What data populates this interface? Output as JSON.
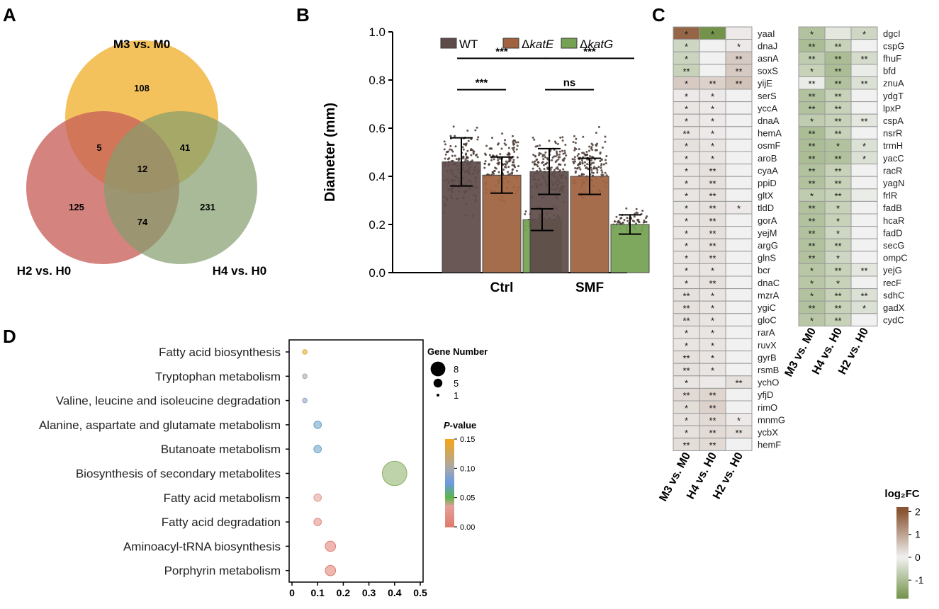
{
  "panels": {
    "A": "A",
    "B": "B",
    "C": "C",
    "D": "D"
  },
  "chart_data": [
    {
      "type": "venn",
      "sets": [
        {
          "name": "M3 vs. M0",
          "color": "#f3bb4b"
        },
        {
          "name": "H2 vs. H0",
          "color": "#c8605a"
        },
        {
          "name": "H4 vs. H0",
          "color": "#849c6c"
        }
      ],
      "regions": [
        {
          "sets": [
            "M3 vs. M0"
          ],
          "value": 108
        },
        {
          "sets": [
            "H2 vs. H0"
          ],
          "value": 125
        },
        {
          "sets": [
            "H4 vs. H0"
          ],
          "value": 231
        },
        {
          "sets": [
            "M3 vs. M0",
            "H2 vs. H0"
          ],
          "value": 5
        },
        {
          "sets": [
            "M3 vs. M0",
            "H4 vs. H0"
          ],
          "value": 41
        },
        {
          "sets": [
            "H2 vs. H0",
            "H4 vs. H0"
          ],
          "value": 74
        },
        {
          "sets": [
            "M3 vs. M0",
            "H2 vs. H0",
            "H4 vs. H0"
          ],
          "value": 12
        }
      ]
    },
    {
      "type": "bar",
      "ylabel": "Diameter (mm)",
      "ylim": [
        0,
        1.0
      ],
      "yticks": [
        "0.0",
        "0.2",
        "0.4",
        "0.6",
        "0.8",
        "1.0"
      ],
      "categories": [
        "Ctrl",
        "SMF"
      ],
      "series": [
        {
          "name": "WT",
          "italic": "",
          "color": "#5e4c4a",
          "values": [
            0.46,
            0.42
          ],
          "sd": [
            0.1,
            0.095
          ],
          "spread": [
            0.21,
            0.64
          ]
        },
        {
          "name": "Δ",
          "italic": "katE",
          "color": "#a0623f",
          "values": [
            0.405,
            0.4
          ],
          "sd": [
            0.075,
            0.075
          ],
          "spread": [
            0.27,
            0.62
          ]
        },
        {
          "name": "Δ",
          "italic": "katG",
          "color": "#76a253",
          "values": [
            0.22,
            0.2
          ],
          "sd": [
            0.045,
            0.04
          ],
          "spread": [
            0.15,
            0.28
          ]
        }
      ],
      "significance": [
        {
          "label": "***",
          "group": "Ctrl",
          "from": 0,
          "to": 2,
          "y": 0.89
        },
        {
          "label": "***",
          "group": "Ctrl",
          "from": 0,
          "to": 1,
          "y": 0.76
        },
        {
          "label": "***",
          "group": "SMF",
          "from": 0,
          "to": 2,
          "y": 0.89
        },
        {
          "label": "ns",
          "group": "SMF",
          "from": 0,
          "to": 1,
          "y": 0.76
        }
      ]
    },
    {
      "type": "heatmap",
      "columns": [
        "M3 vs. M0",
        "H4 vs. H0",
        "H2 vs. H0"
      ],
      "left": {
        "genes": [
          "yaaI",
          "dnaJ",
          "asnA",
          "soxS",
          "yijE",
          "serS",
          "yccA",
          "dnaA",
          "hemA",
          "osmF",
          "aroB",
          "cyaA",
          "ppiD",
          "gltX",
          "tldD",
          "gorA",
          "yejM",
          "argG",
          "glnS",
          "bcr",
          "dnaC",
          "mzrA",
          "ygiC",
          "gloC",
          "rarA",
          "ruvX",
          "gyrB",
          "rsmB",
          "ychO",
          "yfjD",
          "rimO",
          "mnmG",
          "ycbX",
          "hemF"
        ],
        "values": [
          [
            1.8,
            -1.8,
            0.1
          ],
          [
            -0.5,
            0,
            0.1
          ],
          [
            -0.55,
            0,
            0.5
          ],
          [
            -0.6,
            0,
            0.5
          ],
          [
            0.5,
            0.4,
            0.6
          ],
          [
            0.1,
            0.1,
            0
          ],
          [
            0.15,
            0.1,
            0
          ],
          [
            0.15,
            0.1,
            0
          ],
          [
            0.15,
            0.1,
            0
          ],
          [
            0.2,
            0.15,
            0
          ],
          [
            0.15,
            0.15,
            0
          ],
          [
            0.15,
            0.2,
            0
          ],
          [
            0.15,
            0.2,
            0
          ],
          [
            0.15,
            0.2,
            0
          ],
          [
            0.15,
            0.2,
            0.1
          ],
          [
            0.15,
            0.2,
            0
          ],
          [
            0.15,
            0.2,
            0
          ],
          [
            0.15,
            0.2,
            0
          ],
          [
            0.15,
            0.2,
            0
          ],
          [
            0.15,
            0.15,
            0
          ],
          [
            0.15,
            0.2,
            0
          ],
          [
            0.2,
            0.15,
            0
          ],
          [
            0.2,
            0.15,
            0
          ],
          [
            0.2,
            0.15,
            0
          ],
          [
            0.15,
            0.15,
            0
          ],
          [
            0.15,
            0.15,
            0
          ],
          [
            0.2,
            0.15,
            0
          ],
          [
            0.2,
            0.15,
            0
          ],
          [
            0.15,
            0.1,
            0.2
          ],
          [
            0.3,
            0.35,
            0
          ],
          [
            0.25,
            0.4,
            0
          ],
          [
            0.2,
            0.3,
            0.1
          ],
          [
            0.2,
            0.3,
            0.2
          ],
          [
            0.25,
            0.3,
            0
          ]
        ],
        "stars": [
          [
            "*",
            "*",
            ""
          ],
          [
            "*",
            "",
            "*"
          ],
          [
            "*",
            "",
            "**"
          ],
          [
            "**",
            "",
            "**"
          ],
          [
            "*",
            "**",
            "**"
          ],
          [
            "*",
            "*",
            ""
          ],
          [
            "*",
            "*",
            ""
          ],
          [
            "*",
            "*",
            ""
          ],
          [
            "**",
            "*",
            ""
          ],
          [
            "*",
            "*",
            ""
          ],
          [
            "*",
            "*",
            ""
          ],
          [
            "*",
            "**",
            ""
          ],
          [
            "*",
            "**",
            ""
          ],
          [
            "*",
            "**",
            ""
          ],
          [
            "*",
            "**",
            "*"
          ],
          [
            "*",
            "**",
            ""
          ],
          [
            "*",
            "**",
            ""
          ],
          [
            "*",
            "**",
            ""
          ],
          [
            "*",
            "**",
            ""
          ],
          [
            "*",
            "*",
            ""
          ],
          [
            "*",
            "**",
            ""
          ],
          [
            "**",
            "*",
            ""
          ],
          [
            "**",
            "*",
            ""
          ],
          [
            "**",
            "*",
            ""
          ],
          [
            "*",
            "*",
            ""
          ],
          [
            "*",
            "*",
            ""
          ],
          [
            "**",
            "*",
            ""
          ],
          [
            "**",
            "*",
            ""
          ],
          [
            "*",
            "",
            "**"
          ],
          [
            "**",
            "**",
            ""
          ],
          [
            "*",
            "**",
            ""
          ],
          [
            "*",
            "**",
            "*"
          ],
          [
            "*",
            "**",
            "**"
          ],
          [
            "**",
            "**",
            ""
          ]
        ]
      },
      "right": {
        "genes": [
          "dgcI",
          "cspG",
          "fhuF",
          "bfd",
          "znuA",
          "ydgT",
          "lpxP",
          "cspA",
          "nsrR",
          "trmH",
          "yacC",
          "racR",
          "yagN",
          "frlR",
          "fadB",
          "hcaR",
          "fadD",
          "secG",
          "ompC",
          "yejG",
          "recF",
          "sdhC",
          "gadX",
          "cydC"
        ],
        "values": [
          [
            -0.9,
            -0.2,
            -0.5
          ],
          [
            -1.0,
            -0.6,
            0
          ],
          [
            -0.7,
            -1.0,
            -0.4
          ],
          [
            -0.6,
            -1.0,
            -0.1
          ],
          [
            -0.1,
            -0.9,
            -0.3
          ],
          [
            -0.9,
            -0.6,
            0
          ],
          [
            -0.9,
            -0.6,
            0
          ],
          [
            -0.7,
            -0.6,
            -0.2
          ],
          [
            -1.0,
            -0.6,
            0
          ],
          [
            -1.0,
            -0.9,
            -0.3
          ],
          [
            -1.0,
            -0.9,
            -0.3
          ],
          [
            -0.9,
            -0.6,
            0
          ],
          [
            -0.9,
            -0.6,
            0
          ],
          [
            -0.7,
            -0.6,
            -0.1
          ],
          [
            -0.9,
            -0.6,
            0
          ],
          [
            -0.9,
            -0.6,
            0
          ],
          [
            -0.9,
            -0.5,
            0
          ],
          [
            -0.9,
            -0.6,
            0
          ],
          [
            -0.9,
            -0.5,
            0
          ],
          [
            -0.8,
            -0.6,
            -0.2
          ],
          [
            -0.8,
            -0.6,
            0
          ],
          [
            -0.9,
            -0.6,
            -0.3
          ],
          [
            -0.9,
            -0.6,
            -0.3
          ],
          [
            -0.8,
            -0.6,
            0
          ]
        ],
        "stars": [
          [
            "*",
            "",
            "*"
          ],
          [
            "**",
            "**",
            ""
          ],
          [
            "**",
            "**",
            "**"
          ],
          [
            "*",
            "**",
            ""
          ],
          [
            "**",
            "**",
            "**"
          ],
          [
            "**",
            "**",
            ""
          ],
          [
            "**",
            "**",
            ""
          ],
          [
            "*",
            "**",
            "**"
          ],
          [
            "**",
            "**",
            ""
          ],
          [
            "**",
            "*",
            "*"
          ],
          [
            "**",
            "**",
            "*"
          ],
          [
            "**",
            "**",
            ""
          ],
          [
            "**",
            "**",
            ""
          ],
          [
            "*",
            "**",
            ""
          ],
          [
            "**",
            "*",
            ""
          ],
          [
            "**",
            "*",
            ""
          ],
          [
            "**",
            "*",
            ""
          ],
          [
            "**",
            "**",
            ""
          ],
          [
            "**",
            "*",
            ""
          ],
          [
            "*",
            "**",
            "**"
          ],
          [
            "*",
            "*",
            ""
          ],
          [
            "*",
            "**",
            "**"
          ],
          [
            "**",
            "**",
            "*"
          ],
          [
            "*",
            "**",
            ""
          ]
        ]
      },
      "colorbar": {
        "title": "log₂FC",
        "ticks": [
          "2",
          "1",
          "0",
          "-1"
        ],
        "tick_values": [
          2,
          1,
          0,
          -1
        ],
        "range": [
          -1.8,
          2.2
        ]
      }
    },
    {
      "type": "scatter",
      "subtype": "bubble",
      "categories": [
        "Fatty acid biosynthesis",
        "Tryptophan metabolism",
        "Valine, leucine and isoleucine degradation",
        "Alanine, aspartate and glutamate metabolism",
        "Butanoate metabolism",
        "Biosynthesis of secondary metabolites",
        "Fatty acid metabolism",
        "Fatty acid degradation",
        "Aminoacyl-tRNA biosynthesis",
        "Porphyrin metabolism"
      ],
      "x": [
        0.05,
        0.05,
        0.05,
        0.1,
        0.1,
        0.4,
        0.1,
        0.1,
        0.15,
        0.15
      ],
      "gene_number": [
        1,
        1,
        1,
        2,
        2,
        8,
        2,
        2,
        3,
        3
      ],
      "p_value": [
        0.14,
        0.1,
        0.09,
        0.07,
        0.07,
        0.045,
        0.03,
        0.015,
        0.002,
        0.001
      ],
      "xlim": [
        0,
        0.5
      ],
      "xticks": [
        "0",
        "0.1",
        "0.2",
        "0.3",
        "0.4",
        "0.5"
      ],
      "size_legend": {
        "title": "Gene Number",
        "entries": [
          {
            "label": "8",
            "value": 8
          },
          {
            "label": "5",
            "value": 5
          },
          {
            "label": "1",
            "value": 1
          }
        ]
      },
      "color_legend": {
        "title": "P",
        "title_suffix": "-value",
        "ticks": [
          "0.15",
          "0.10",
          "0.05",
          "0.00"
        ],
        "tick_values": [
          0.15,
          0.1,
          0.05,
          0.0
        ]
      }
    }
  ]
}
